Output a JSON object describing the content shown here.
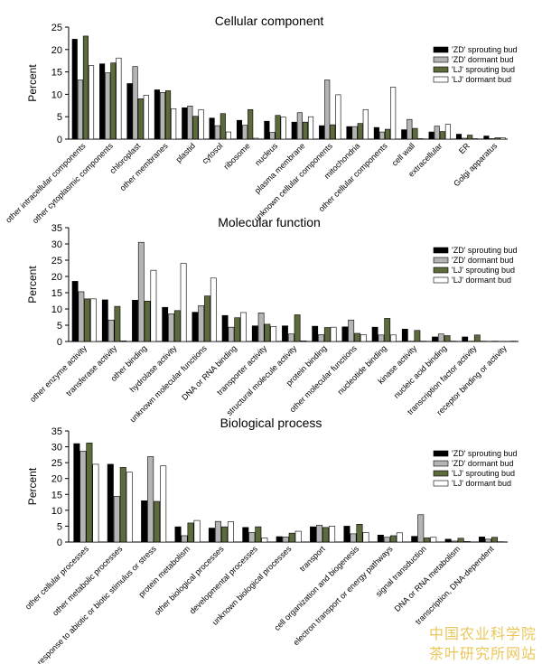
{
  "legend": [
    {
      "name": "'ZD' sprouting bud",
      "color": "#000000"
    },
    {
      "name": "'ZD' dormant bud",
      "color": "#b4b4b4"
    },
    {
      "name": "'LJ' sprouting bud",
      "color": "#5c6a3c"
    },
    {
      "name": "'LJ' dormant bud",
      "color": "#ffffff"
    }
  ],
  "watermark": {
    "line1": "中国农业科学院",
    "line2": "茶叶研究所网站",
    "color": "#e8c24a"
  },
  "chart_data": [
    {
      "type": "bar",
      "title": "Cellular component",
      "ylabel": "Percent",
      "ylim": [
        0,
        25
      ],
      "yticks": [
        0,
        5,
        10,
        15,
        20,
        25
      ],
      "legend_position": "top-right",
      "categories": [
        "other intracellular components",
        "other cytoplasmic components",
        "chloroplast",
        "other membranes",
        "plastid",
        "cytosol",
        "ribosome",
        "nucleus",
        "plasma membrane",
        "unknown cellular components",
        "mitochondria",
        "other cellular components",
        "cell wall",
        "extracellular",
        "ER",
        "Golgi apparatus"
      ],
      "series": [
        {
          "name": "'ZD' sprouting bud",
          "values": [
            22.3,
            16.8,
            12.4,
            11.0,
            7.0,
            4.7,
            4.2,
            4.0,
            3.8,
            3.0,
            2.8,
            2.6,
            2.1,
            1.6,
            1.1,
            0.7
          ]
        },
        {
          "name": "'ZD' dormant bud",
          "values": [
            13.2,
            14.8,
            16.2,
            10.4,
            7.4,
            3.0,
            3.1,
            1.5,
            5.9,
            13.2,
            2.8,
            1.6,
            4.4,
            2.9,
            0.2,
            0.1
          ]
        },
        {
          "name": "'LJ' sprouting bud",
          "values": [
            23.0,
            17.0,
            9.0,
            10.8,
            5.1,
            5.7,
            6.6,
            5.3,
            3.8,
            3.2,
            3.5,
            2.2,
            2.4,
            1.7,
            0.9,
            0.3
          ]
        },
        {
          "name": "'LJ' dormant bud",
          "values": [
            16.4,
            18.1,
            9.8,
            6.8,
            6.6,
            1.6,
            0.2,
            4.9,
            5.0,
            9.9,
            6.6,
            11.6,
            0.1,
            3.3,
            0.1,
            0.3
          ]
        }
      ]
    },
    {
      "type": "bar",
      "title": "Molecular function",
      "ylabel": "Percent",
      "ylim": [
        0,
        35
      ],
      "yticks": [
        0,
        5,
        10,
        15,
        20,
        25,
        30,
        35
      ],
      "legend_position": "top-right",
      "categories": [
        "other enzyme activity",
        "transferase activity",
        "other binding",
        "hydrolase activity",
        "unknown molecular functions",
        "DNA or RNA binding",
        "transporter activity",
        "structural molecule activity",
        "protein binding",
        "other molecular functions",
        "nucleotide binding",
        "kinase activity",
        "nucleic acid binding",
        "transcription factor activity",
        "receptor binding or activity"
      ],
      "series": [
        {
          "name": "'ZD' sprouting bud",
          "values": [
            18.5,
            12.8,
            12.7,
            10.5,
            9.0,
            8.0,
            4.8,
            4.8,
            4.7,
            4.5,
            4.4,
            3.8,
            1.4,
            1.4,
            0.1
          ]
        },
        {
          "name": "'ZD' dormant bud",
          "values": [
            15.3,
            6.6,
            30.5,
            8.5,
            11.0,
            4.4,
            8.8,
            2.3,
            2.1,
            6.6,
            2.0,
            0.1,
            2.3,
            0.1,
            0.0
          ]
        },
        {
          "name": "'LJ' sprouting bud",
          "values": [
            13.1,
            10.8,
            12.4,
            9.5,
            14.0,
            7.3,
            5.3,
            8.2,
            4.3,
            2.5,
            7.1,
            3.4,
            1.8,
            2.0,
            0.0
          ]
        },
        {
          "name": "'LJ' dormant bud",
          "values": [
            13.1,
            0.2,
            21.9,
            24.0,
            19.5,
            8.9,
            4.6,
            0.2,
            4.4,
            2.1,
            2.0,
            0.1,
            0.1,
            0.1,
            0.1
          ]
        }
      ]
    },
    {
      "type": "bar",
      "title": "Biological process",
      "ylabel": "Percent",
      "ylim": [
        0,
        35
      ],
      "yticks": [
        0,
        5,
        10,
        15,
        20,
        25,
        30,
        35
      ],
      "legend_position": "top-right",
      "categories": [
        "other cellular processes",
        "other metabolic processes",
        "response to abiotic or biotic stimulus or stress",
        "protein metabolism",
        "other biological processes",
        "developmental processes",
        "unknown biological processes",
        "transport",
        "cell organization and biogenesis",
        "electron transport or energy pathways",
        "signal transduction",
        "DNA or RNA metabolism",
        "transcription, DNA-dependent"
      ],
      "series": [
        {
          "name": "'ZD' sprouting bud",
          "values": [
            31.0,
            24.5,
            13.0,
            4.8,
            4.4,
            4.6,
            1.7,
            4.8,
            5.0,
            2.2,
            1.8,
            0.9,
            1.6
          ]
        },
        {
          "name": "'ZD' dormant bud",
          "values": [
            28.6,
            14.4,
            26.9,
            2.0,
            6.5,
            3.0,
            1.6,
            5.3,
            2.6,
            1.5,
            8.6,
            0.3,
            0.9
          ]
        },
        {
          "name": "'LJ' sprouting bud",
          "values": [
            31.2,
            23.5,
            12.8,
            6.0,
            4.8,
            4.8,
            2.8,
            4.6,
            5.6,
            2.0,
            1.3,
            1.2,
            1.5
          ]
        },
        {
          "name": "'LJ' dormant bud",
          "values": [
            24.5,
            22.0,
            24.0,
            6.8,
            6.4,
            1.3,
            3.4,
            5.0,
            3.0,
            2.9,
            1.5,
            0.2,
            0.1
          ]
        }
      ]
    }
  ]
}
